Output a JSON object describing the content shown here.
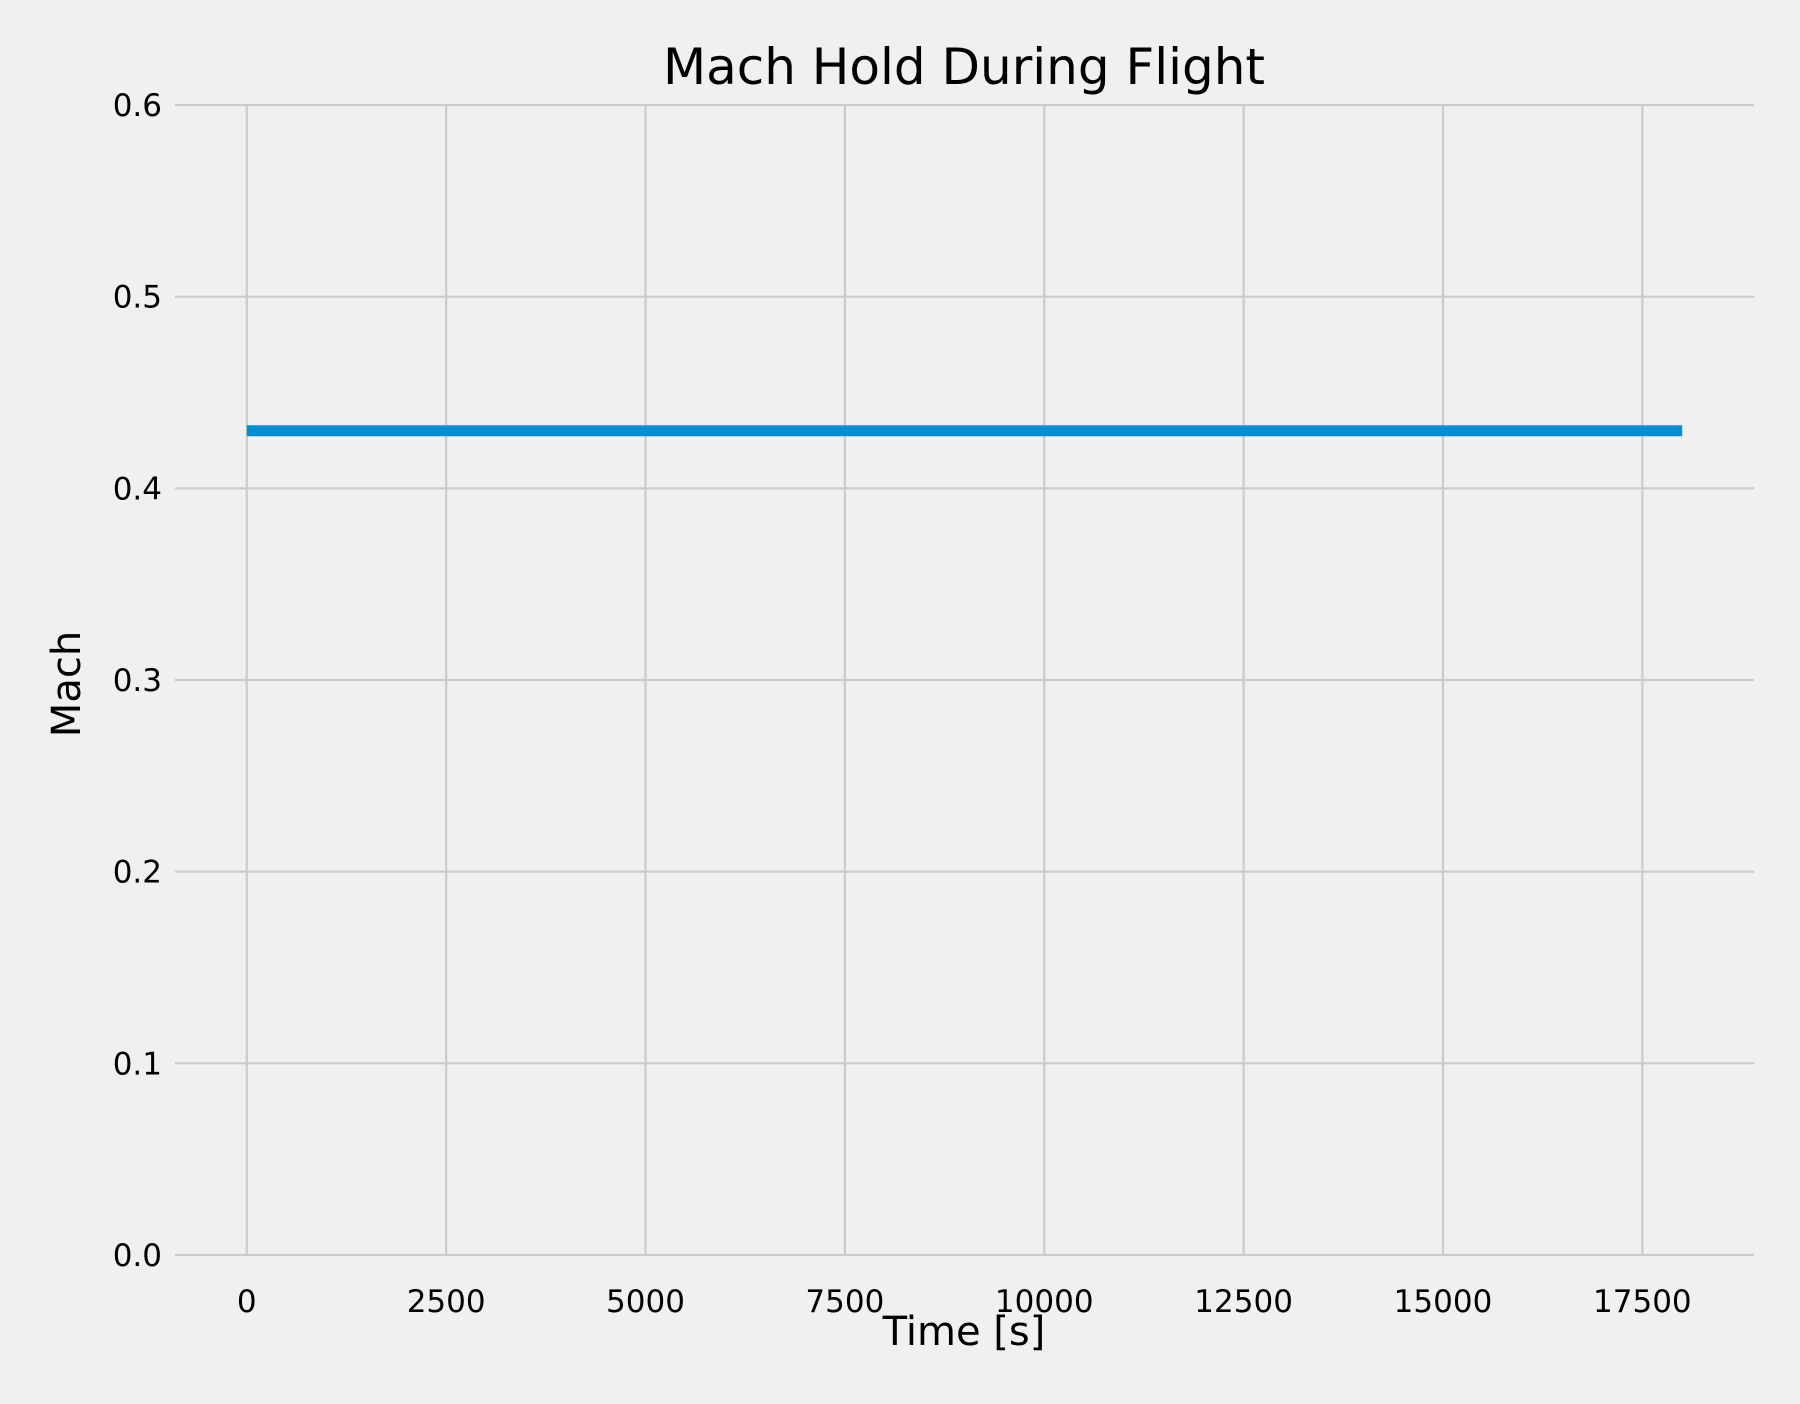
{
  "chart_data": {
    "type": "line",
    "title": "Mach Hold During Flight",
    "xlabel": "Time [s]",
    "ylabel": "Mach",
    "xlim": [
      -900,
      18900
    ],
    "ylim": [
      0,
      0.6
    ],
    "x_ticks": [
      0,
      2500,
      5000,
      7500,
      10000,
      12500,
      15000,
      17500
    ],
    "y_ticks": [
      0.0,
      0.1,
      0.2,
      0.3,
      0.4,
      0.5,
      0.6
    ],
    "x_tick_labels": [
      "0",
      "2500",
      "5000",
      "7500",
      "10000",
      "12500",
      "15000",
      "17500"
    ],
    "y_tick_labels": [
      "0.0",
      "0.1",
      "0.2",
      "0.3",
      "0.4",
      "0.5",
      "0.6"
    ],
    "grid": true,
    "legend": "none",
    "colors": {
      "background": "#f0f0f0",
      "grid": "#cbcbcb",
      "line": "#008fd5",
      "text": "#000000"
    },
    "series": [
      {
        "x": [
          0,
          18000
        ],
        "y": [
          0.43,
          0.43
        ]
      }
    ]
  }
}
